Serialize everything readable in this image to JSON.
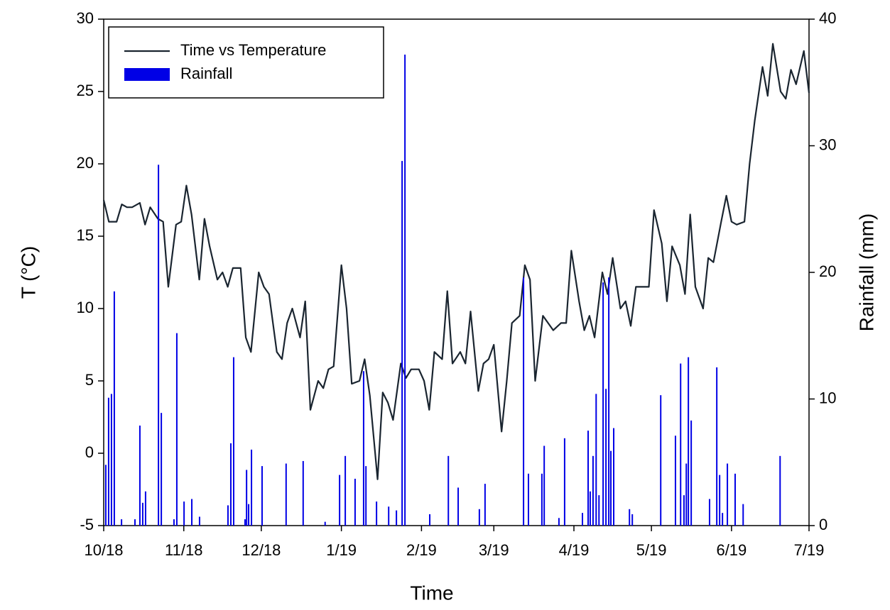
{
  "chart_data": {
    "type": "line",
    "xlabel": "Time",
    "ylabel": "T (°C)",
    "y2label": "Rainfall (mm)",
    "xlim": [
      0,
      273
    ],
    "xticks": [
      {
        "value": 0,
        "label": "10/18"
      },
      {
        "value": 31,
        "label": "11/18"
      },
      {
        "value": 61,
        "label": "12/18"
      },
      {
        "value": 92,
        "label": "1/19"
      },
      {
        "value": 123,
        "label": "2/19"
      },
      {
        "value": 151,
        "label": "3/19"
      },
      {
        "value": 182,
        "label": "4/19"
      },
      {
        "value": 212,
        "label": "5/19"
      },
      {
        "value": 243,
        "label": "6/19"
      },
      {
        "value": 273,
        "label": "7/19"
      }
    ],
    "ylim": [
      -5,
      30
    ],
    "yticks": [
      -5,
      0,
      5,
      10,
      15,
      20,
      25,
      30
    ],
    "y2lim": [
      0,
      40
    ],
    "y2ticks": [
      0,
      10,
      20,
      30,
      40
    ],
    "legend": "upper left",
    "series": [
      {
        "name": "Time vs Temperature",
        "color": "#1a2530",
        "x": [
          0,
          2,
          5,
          7,
          9,
          11,
          14,
          16,
          18,
          21,
          23,
          25,
          28,
          30,
          32,
          34,
          37,
          39,
          41,
          44,
          46,
          48,
          50,
          53,
          55,
          57,
          60,
          62,
          64,
          67,
          69,
          71,
          73,
          76,
          78,
          80,
          83,
          85,
          87,
          89,
          92,
          94,
          96,
          99,
          101,
          103,
          106,
          108,
          110,
          112,
          115,
          117,
          119,
          122,
          124,
          126,
          128,
          131,
          133,
          135,
          138,
          140,
          142,
          145,
          147,
          149,
          151,
          154,
          156,
          158,
          161,
          163,
          165,
          167,
          170,
          172,
          174,
          177,
          179,
          181,
          184,
          186,
          188,
          190,
          193,
          195,
          197,
          200,
          202,
          204,
          206,
          209,
          211,
          213,
          216,
          218,
          220,
          223,
          225,
          227,
          229,
          232,
          234,
          236,
          239,
          241,
          243,
          245,
          248,
          250,
          252,
          255,
          257,
          259,
          262,
          264,
          266,
          268,
          271,
          273
        ],
        "values": [
          17.5,
          16.0,
          16.0,
          17.2,
          17.0,
          17.0,
          17.3,
          15.8,
          17.0,
          16.2,
          16.0,
          11.5,
          15.8,
          16.0,
          18.5,
          16.5,
          12.0,
          16.2,
          14.3,
          12.0,
          12.5,
          11.5,
          12.8,
          12.8,
          8.0,
          7.0,
          12.5,
          11.5,
          11.0,
          7.0,
          6.5,
          9.0,
          10.0,
          8.0,
          10.5,
          3.0,
          5.0,
          4.5,
          5.8,
          6.0,
          13.0,
          10.0,
          4.8,
          5.0,
          6.5,
          4.0,
          -1.8,
          4.2,
          3.5,
          2.3,
          6.2,
          5.2,
          5.8,
          5.8,
          5.0,
          3.0,
          7.0,
          6.5,
          11.2,
          6.2,
          7.0,
          6.2,
          9.8,
          4.3,
          6.2,
          6.5,
          7.5,
          1.5,
          5.0,
          9.0,
          9.5,
          13.0,
          12.0,
          5.0,
          9.5,
          9.0,
          8.5,
          9.0,
          9.0,
          14.0,
          10.5,
          8.5,
          9.5,
          8.0,
          12.5,
          11.0,
          13.5,
          10.0,
          10.5,
          8.8,
          11.5,
          11.5,
          11.5,
          16.8,
          14.5,
          10.5,
          14.3,
          13.0,
          11.0,
          16.5,
          11.5,
          10.0,
          13.5,
          13.2,
          16.0,
          17.8,
          16.0,
          15.8,
          16.0,
          20.0,
          23.0,
          26.7,
          24.7,
          28.3,
          25.0,
          24.5,
          26.5,
          25.5,
          27.8,
          24.9
        ]
      },
      {
        "name": "Rainfall",
        "color": "#0000e6",
        "type": "bar",
        "axis": "y2",
        "x": [
          0.8,
          1.9,
          3.0,
          4.1,
          6.9,
          12.1,
          14.0,
          15.1,
          16.2,
          21.2,
          22.3,
          27.2,
          28.3,
          31.1,
          34.1,
          37.1,
          48.1,
          49.2,
          50.3,
          54.7,
          55.3,
          56.1,
          57.2,
          61.3,
          70.6,
          77.2,
          85.7,
          91.3,
          93.5,
          97.3,
          100.6,
          101.5,
          105.6,
          110.3,
          113.3,
          115.5,
          116.6,
          126.2,
          133.4,
          137.2,
          145.4,
          147.6,
          162.5,
          164.4,
          169.6,
          170.5,
          176.2,
          178.4,
          185.3,
          187.5,
          188.3,
          189.4,
          190.6,
          191.7,
          193.3,
          194.4,
          195.5,
          196.3,
          197.4,
          203.5,
          204.6,
          215.6,
          221.3,
          223.3,
          224.6,
          225.5,
          226.3,
          227.4,
          234.5,
          237.3,
          238.4,
          239.5,
          241.4,
          244.4,
          247.5,
          261.8
        ],
        "values": [
          4.8,
          10.1,
          10.4,
          18.5,
          0.5,
          0.5,
          7.9,
          1.8,
          2.7,
          28.5,
          8.9,
          0.5,
          15.2,
          1.9,
          2.1,
          0.7,
          1.6,
          6.5,
          13.3,
          0.5,
          4.4,
          1.7,
          6.0,
          4.7,
          4.9,
          5.1,
          0.3,
          4.0,
          5.5,
          3.7,
          12.2,
          4.7,
          1.9,
          1.5,
          1.2,
          28.8,
          37.2,
          0.9,
          5.5,
          3.0,
          1.3,
          3.3,
          19.6,
          4.1,
          4.1,
          6.3,
          0.6,
          6.9,
          1.0,
          7.5,
          2.7,
          5.5,
          10.4,
          2.4,
          19.2,
          10.8,
          19.6,
          5.9,
          7.7,
          1.3,
          0.9,
          10.3,
          7.1,
          12.8,
          2.4,
          4.9,
          13.3,
          8.3,
          2.1,
          12.5,
          4.0,
          1.0,
          4.9,
          4.1,
          1.7,
          5.5
        ]
      }
    ]
  }
}
